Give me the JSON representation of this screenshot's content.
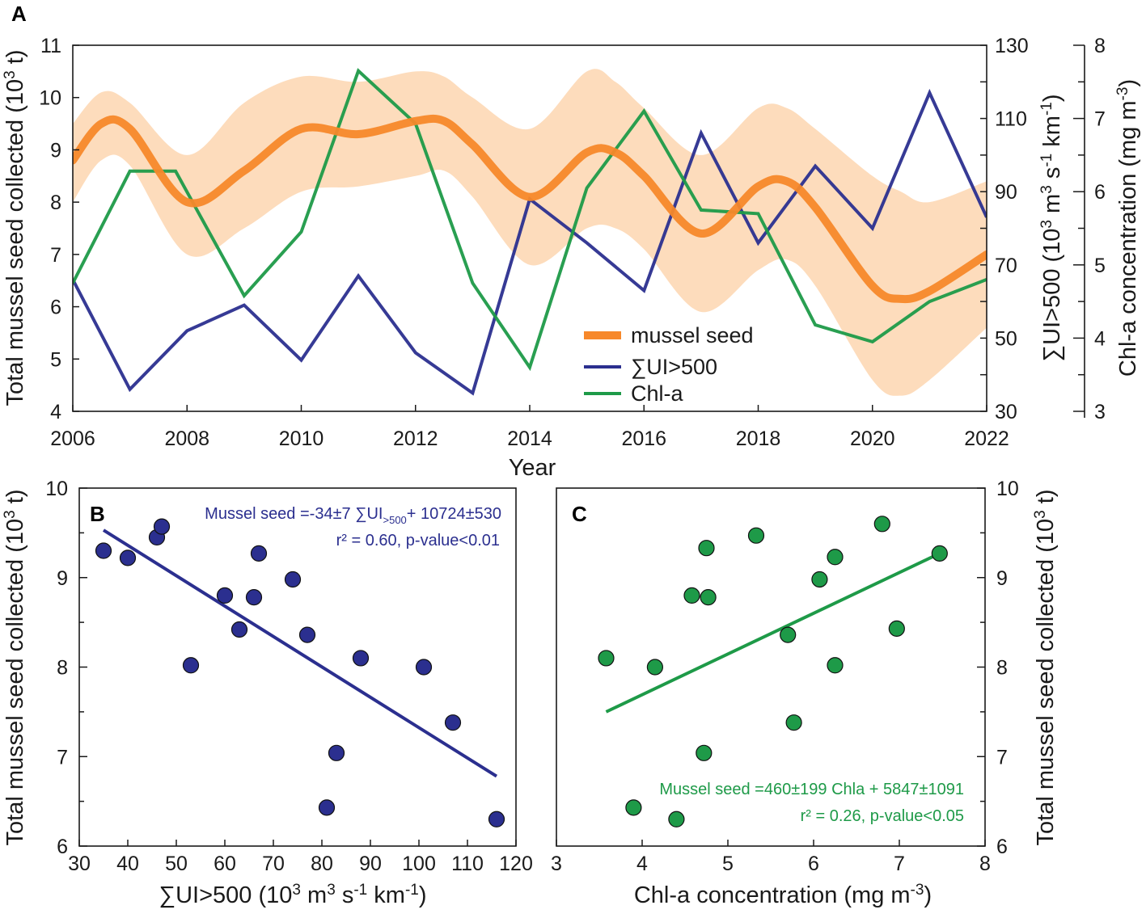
{
  "colors": {
    "mussel": "#f7882a",
    "band": "#fddcbc",
    "sui": "#2b2f8f",
    "chl": "#1e9a48",
    "axis": "#1a1a1a"
  },
  "chart_data": [
    {
      "panel": "A",
      "type": "line",
      "xlabel": "Year",
      "xlim": [
        2006,
        2022
      ],
      "x_ticks": [
        2006,
        2008,
        2010,
        2012,
        2014,
        2016,
        2018,
        2020,
        2022
      ],
      "ylabel_left": "Total mussel seed collected (10³ t)",
      "ylim_left": [
        4,
        11
      ],
      "y_ticks_left": [
        4,
        5,
        6,
        7,
        8,
        9,
        10,
        11
      ],
      "ylabel_right1": "∑UI>500 (10³ m³ s⁻¹ km⁻¹)",
      "ylim_right1": [
        30,
        130
      ],
      "y_ticks_right1": [
        30,
        50,
        70,
        90,
        110,
        130
      ],
      "ylabel_right2": "Chl-a concentration (mg m⁻³)",
      "ylim_right2": [
        3,
        8
      ],
      "y_ticks_right2": [
        3,
        4,
        5,
        6,
        7,
        8
      ],
      "series": [
        {
          "name": "mussel seed",
          "axis": "left",
          "x": [
            2006,
            2006.5,
            2007,
            2008,
            2009,
            2010,
            2011,
            2012,
            2012.5,
            2013,
            2014,
            2015,
            2015.5,
            2016,
            2017,
            2018,
            2018.5,
            2019,
            2020,
            2020.5,
            2021,
            2022
          ],
          "values": [
            8.8,
            9.5,
            9.4,
            8.0,
            8.6,
            9.4,
            9.3,
            9.55,
            9.55,
            9.1,
            8.1,
            8.95,
            8.95,
            8.5,
            7.4,
            8.3,
            8.4,
            7.9,
            6.4,
            6.15,
            6.3,
            7.0
          ],
          "band_upper": [
            9.5,
            10.1,
            9.9,
            8.9,
            9.9,
            10.4,
            10.3,
            10.5,
            10.4,
            10.0,
            9.4,
            10.5,
            10.3,
            9.8,
            8.9,
            9.8,
            9.8,
            9.4,
            8.5,
            8.2,
            8.0,
            8.4
          ],
          "band_lower": [
            8.0,
            8.8,
            8.7,
            7.0,
            7.5,
            8.2,
            8.3,
            8.5,
            8.6,
            8.1,
            6.8,
            7.5,
            7.5,
            7.1,
            5.9,
            6.7,
            6.9,
            6.4,
            4.6,
            4.3,
            4.6,
            5.6
          ]
        },
        {
          "name": "∑UI>500",
          "axis": "right1",
          "x": [
            2006,
            2007,
            2008,
            2009,
            2010,
            2011,
            2012,
            2013,
            2014,
            2015,
            2016,
            2017,
            2018,
            2019,
            2020,
            2021,
            2022
          ],
          "values": [
            66,
            36,
            52,
            59,
            44,
            67,
            46,
            35,
            88,
            76,
            63,
            106,
            76,
            97,
            80,
            117,
            83
          ]
        },
        {
          "name": "Chl-a",
          "axis": "right2",
          "x": [
            2006,
            2007,
            2007.8,
            2009,
            2010,
            2011,
            2012,
            2013,
            2014,
            2015,
            2016,
            2017,
            2018,
            2019,
            2020,
            2021,
            2022
          ],
          "values": [
            4.75,
            6.28,
            6.28,
            4.58,
            5.45,
            7.65,
            6.93,
            4.75,
            3.6,
            6.05,
            7.1,
            5.75,
            5.7,
            4.18,
            3.95,
            4.5,
            4.8
          ]
        }
      ],
      "legend": [
        "mussel seed",
        "∑UI>500",
        "Chl-a"
      ]
    },
    {
      "panel": "B",
      "type": "scatter",
      "xlabel": "∑UI>500 (10³ m³ s⁻¹ km⁻¹)",
      "ylabel": "Total mussel seed collected (10³ t)",
      "xlim": [
        30,
        120
      ],
      "ylim": [
        6,
        10
      ],
      "x_ticks": [
        30,
        40,
        50,
        60,
        70,
        80,
        90,
        100,
        110,
        120
      ],
      "y_ticks": [
        6,
        7,
        8,
        9,
        10
      ],
      "points": [
        [
          35,
          9.3
        ],
        [
          40,
          9.22
        ],
        [
          46,
          9.45
        ],
        [
          47,
          9.57
        ],
        [
          53,
          8.02
        ],
        [
          60,
          8.8
        ],
        [
          63,
          8.42
        ],
        [
          66,
          8.78
        ],
        [
          67,
          9.27
        ],
        [
          74,
          8.98
        ],
        [
          77,
          8.36
        ],
        [
          81,
          6.43
        ],
        [
          83,
          7.04
        ],
        [
          88,
          8.1
        ],
        [
          101,
          8.0
        ],
        [
          107,
          7.38
        ],
        [
          116,
          6.3
        ]
      ],
      "fit": {
        "x": [
          35,
          116
        ],
        "y": [
          9.53,
          6.78
        ]
      },
      "annotation": [
        "Mussel seed =-34±7 ∑UI",
        ">500",
        "+ 10724±530",
        "r² = 0.60, p-value<0.01"
      ]
    },
    {
      "panel": "C",
      "type": "scatter",
      "xlabel": "Chl-a concentration (mg m⁻³)",
      "ylabel": "Total mussel seed collected (10³ t)",
      "xlim": [
        3,
        8
      ],
      "ylim": [
        6,
        10
      ],
      "x_ticks": [
        3,
        4,
        5,
        6,
        7,
        8
      ],
      "y_ticks": [
        6,
        7,
        8,
        9,
        10
      ],
      "points": [
        [
          3.58,
          8.1
        ],
        [
          3.9,
          6.43
        ],
        [
          4.15,
          8.0
        ],
        [
          4.4,
          6.3
        ],
        [
          4.58,
          8.8
        ],
        [
          4.72,
          7.04
        ],
        [
          4.75,
          9.33
        ],
        [
          4.77,
          8.78
        ],
        [
          5.33,
          9.47
        ],
        [
          5.7,
          8.36
        ],
        [
          5.77,
          7.38
        ],
        [
          6.07,
          8.98
        ],
        [
          6.25,
          9.23
        ],
        [
          6.25,
          8.02
        ],
        [
          6.8,
          9.6
        ],
        [
          6.97,
          8.43
        ],
        [
          7.47,
          9.27
        ]
      ],
      "fit": {
        "x": [
          3.58,
          7.47
        ],
        "y": [
          7.5,
          9.27
        ]
      },
      "annotation": [
        "Mussel seed =460±199 Chla + 5847±1091",
        "r² = 0.26, p-value<0.05"
      ]
    }
  ]
}
